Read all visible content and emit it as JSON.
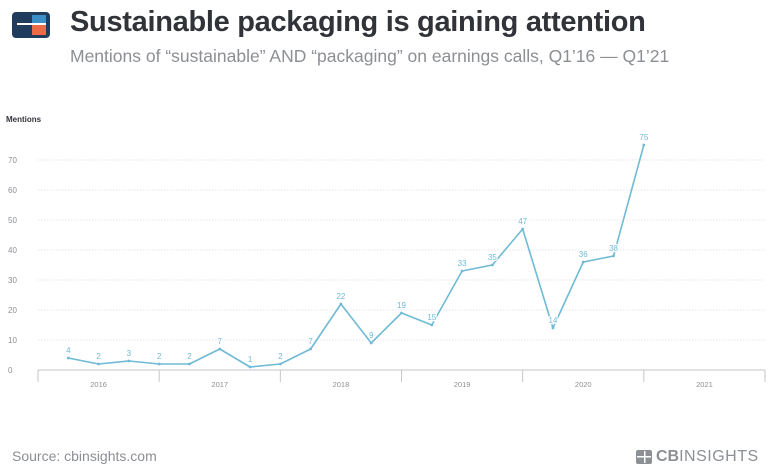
{
  "header": {
    "title": "Sustainable packaging is gaining attention",
    "subtitle": "Mentions of “sustainable” AND “packaging” on earnings calls, Q1’16 — Q1’21"
  },
  "footer": {
    "source": "Source: cbinsights.com",
    "brand_bold": "CB",
    "brand_rest": "INSIGHTS"
  },
  "colors": {
    "line": "#6fbad4",
    "title": "#303338",
    "muted": "#8c8f93",
    "logo_dark": "#1f3c5c",
    "logo_accent": "#ec6a45",
    "logo_mid": "#3b8fc6"
  },
  "chart_data": {
    "type": "line",
    "title": "Sustainable packaging is gaining attention",
    "subtitle": "Mentions of “sustainable” AND “packaging” on earnings calls, Q1’16 — Q1’21",
    "ylabel": "Mentions",
    "xlabel": "",
    "ylim": [
      0,
      75
    ],
    "yticks": [
      0,
      10,
      20,
      30,
      40,
      50,
      60,
      70
    ],
    "xlim": [
      2016,
      2022
    ],
    "xticks": [
      "2016",
      "2017",
      "2018",
      "2019",
      "2020",
      "2021"
    ],
    "grid": true,
    "legend": "none",
    "series": [
      {
        "x": [
          2016.25,
          2016.5,
          2016.75,
          2017.0,
          2017.25,
          2017.5,
          2017.75,
          2018.0,
          2018.25,
          2018.5,
          2018.75,
          2019.0,
          2019.25,
          2019.5,
          2019.75,
          2020.0,
          2020.25,
          2020.5,
          2020.75,
          2021.0
        ],
        "values": [
          4,
          2,
          3,
          2,
          2,
          7,
          1,
          2,
          7,
          22,
          9,
          19,
          15,
          33,
          35,
          47,
          14,
          36,
          38,
          75
        ]
      }
    ]
  }
}
